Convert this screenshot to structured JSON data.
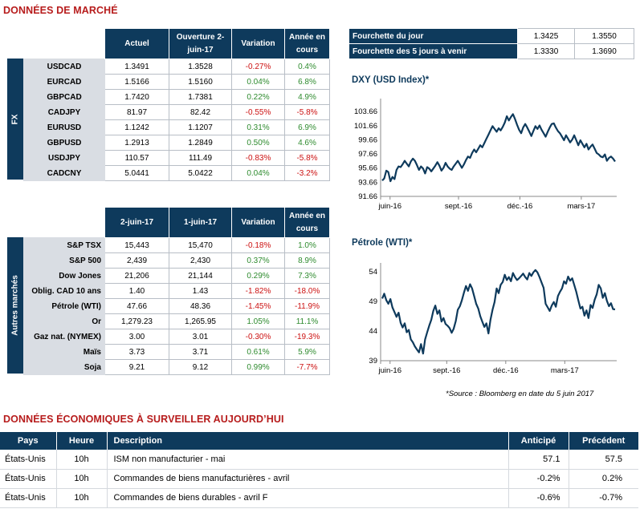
{
  "market": {
    "title": "DONNÉES DE MARCHÉ",
    "fx": {
      "side_label": "FX",
      "headers": [
        "Actuel",
        "Ouverture 2-juin-17",
        "Variation",
        "Année en cours"
      ],
      "rows": [
        {
          "name": "USDCAD",
          "actuel": "1.3491",
          "ouverture": "1.3528",
          "variation": "-0.27%",
          "annee": "0.4%"
        },
        {
          "name": "EURCAD",
          "actuel": "1.5166",
          "ouverture": "1.5160",
          "variation": "0.04%",
          "annee": "6.8%"
        },
        {
          "name": "GBPCAD",
          "actuel": "1.7420",
          "ouverture": "1.7381",
          "variation": "0.22%",
          "annee": "4.9%"
        },
        {
          "name": "CADJPY",
          "actuel": "81.97",
          "ouverture": "82.42",
          "variation": "-0.55%",
          "annee": "-5.8%"
        },
        {
          "name": "EURUSD",
          "actuel": "1.1242",
          "ouverture": "1.1207",
          "variation": "0.31%",
          "annee": "6.9%"
        },
        {
          "name": "GBPUSD",
          "actuel": "1.2913",
          "ouverture": "1.2849",
          "variation": "0.50%",
          "annee": "4.6%"
        },
        {
          "name": "USDJPY",
          "actuel": "110.57",
          "ouverture": "111.49",
          "variation": "-0.83%",
          "annee": "-5.8%"
        },
        {
          "name": "CADCNY",
          "actuel": "5.0441",
          "ouverture": "5.0422",
          "variation": "0.04%",
          "annee": "-3.2%"
        }
      ]
    },
    "other": {
      "side_label": "Autres marchés",
      "headers": [
        "2-juin-17",
        "1-juin-17",
        "Variation",
        "Année en cours"
      ],
      "rows": [
        {
          "name": "S&P TSX",
          "c1": "15,443",
          "c2": "15,470",
          "variation": "-0.18%",
          "annee": "1.0%"
        },
        {
          "name": "S&P 500",
          "c1": "2,439",
          "c2": "2,430",
          "variation": "0.37%",
          "annee": "8.9%"
        },
        {
          "name": "Dow Jones",
          "c1": "21,206",
          "c2": "21,144",
          "variation": "0.29%",
          "annee": "7.3%"
        },
        {
          "name": "Oblig. CAD 10 ans",
          "c1": "1.40",
          "c2": "1.43",
          "variation": "-1.82%",
          "annee": "-18.0%"
        },
        {
          "name": "Pétrole (WTI)",
          "c1": "47.66",
          "c2": "48.36",
          "variation": "-1.45%",
          "annee": "-11.9%"
        },
        {
          "name": "Or",
          "c1": "1,279.23",
          "c2": "1,265.95",
          "variation": "1.05%",
          "annee": "11.1%"
        },
        {
          "name": "Gaz nat. (NYMEX)",
          "c1": "3.00",
          "c2": "3.01",
          "variation": "-0.30%",
          "annee": "-19.3%"
        },
        {
          "name": "Maïs",
          "c1": "3.73",
          "c2": "3.71",
          "variation": "0.61%",
          "annee": "5.9%"
        },
        {
          "name": "Soja",
          "c1": "9.21",
          "c2": "9.12",
          "variation": "0.99%",
          "annee": "-7.7%"
        }
      ]
    },
    "ranges": [
      {
        "label": "Fourchette du jour",
        "low": "1.3425",
        "high": "1.3550"
      },
      {
        "label": "Fourchette des 5 jours à venir",
        "low": "1.3330",
        "high": "1.3690"
      }
    ],
    "source_note": "*Source : Bloomberg en date du  5 juin 2017"
  },
  "chart_data": [
    {
      "type": "line",
      "title": "DXY (USD Index)*",
      "ylim": [
        91.66,
        105.5
      ],
      "yticks": [
        "103.66",
        "101.66",
        "99.66",
        "97.66",
        "95.66",
        "93.66",
        "91.66"
      ],
      "ytick_values": [
        103.66,
        101.66,
        99.66,
        97.66,
        95.66,
        93.66,
        91.66
      ],
      "xticks": [
        "juin-16",
        "sept.-16",
        "déc.-16",
        "mars-17"
      ],
      "xtick_pos": [
        0.04,
        0.33,
        0.59,
        0.85
      ],
      "values": [
        93.9,
        94.2,
        95.3,
        95.1,
        93.8,
        94.4,
        94.1,
        95.4,
        95.9,
        95.8,
        96.2,
        96.7,
        96.3,
        95.9,
        96.6,
        97.0,
        96.7,
        96.1,
        95.4,
        95.9,
        95.6,
        94.9,
        95.8,
        95.6,
        95.2,
        95.6,
        96.0,
        96.5,
        96.0,
        95.3,
        95.7,
        96.4,
        95.9,
        95.6,
        95.4,
        95.9,
        96.3,
        96.7,
        96.2,
        95.7,
        96.2,
        96.8,
        97.3,
        97.1,
        97.8,
        98.3,
        97.9,
        98.4,
        98.9,
        98.6,
        99.2,
        99.8,
        100.4,
        101.0,
        101.6,
        101.2,
        100.8,
        101.3,
        101.0,
        101.5,
        102.1,
        103.0,
        102.4,
        102.9,
        103.3,
        102.6,
        101.8,
        101.1,
        100.6,
        101.4,
        101.9,
        101.4,
        100.8,
        100.2,
        100.9,
        101.6,
        101.2,
        101.7,
        101.1,
        100.6,
        100.1,
        100.8,
        101.4,
        101.9,
        102.0,
        101.4,
        100.9,
        100.6,
        100.1,
        99.6,
        100.3,
        99.8,
        99.3,
        99.7,
        100.3,
        99.6,
        98.9,
        99.6,
        99.1,
        98.6,
        99.1,
        98.3,
        98.7,
        99.0,
        98.4,
        97.8,
        97.6,
        97.3,
        97.2,
        97.6,
        96.7,
        97.1,
        97.3,
        97.0,
        96.6
      ]
    },
    {
      "type": "line",
      "title": "Pétrole (WTI)*",
      "ylim": [
        39,
        55.5
      ],
      "yticks": [
        "54",
        "49",
        "44",
        "39"
      ],
      "ytick_values": [
        54,
        49,
        44,
        39
      ],
      "xticks": [
        "juin-16",
        "sept.-16",
        "déc.-16",
        "mars-17"
      ],
      "xtick_pos": [
        0.04,
        0.28,
        0.53,
        0.78
      ],
      "values": [
        49.5,
        50.3,
        49.2,
        48.6,
        49.4,
        48.0,
        47.2,
        46.4,
        47.1,
        45.4,
        44.6,
        45.3,
        43.8,
        44.2,
        42.6,
        42.1,
        41.4,
        40.9,
        40.4,
        41.8,
        40.2,
        42.6,
        43.8,
        44.9,
        45.9,
        47.4,
        48.3,
        46.9,
        47.5,
        45.6,
        46.2,
        45.2,
        44.9,
        44.5,
        43.7,
        44.4,
        45.7,
        47.6,
        48.2,
        49.2,
        50.5,
        51.6,
        50.8,
        51.9,
        51.2,
        49.9,
        48.6,
        47.8,
        46.5,
        45.6,
        44.7,
        45.3,
        43.6,
        45.9,
        47.6,
        48.9,
        51.2,
        50.4,
        51.8,
        52.3,
        53.5,
        52.6,
        53.1,
        52.4,
        53.8,
        53.1,
        52.6,
        52.9,
        53.3,
        53.7,
        53.1,
        52.7,
        53.8,
        53.3,
        53.9,
        54.3,
        53.9,
        53.1,
        52.2,
        51.3,
        48.6,
        48.0,
        47.4,
        48.3,
        48.9,
        48.1,
        49.9,
        50.6,
        51.2,
        52.4,
        52.0,
        53.2,
        52.5,
        52.9,
        51.8,
        50.6,
        49.2,
        47.8,
        48.1,
        46.6,
        47.5,
        46.2,
        48.4,
        47.9,
        49.3,
        50.2,
        51.8,
        51.2,
        49.6,
        50.4,
        49.1,
        48.2,
        48.7,
        47.7,
        47.66
      ]
    }
  ],
  "economic": {
    "title": "DONNÉES ÉCONOMIQUES À SURVEILLER AUJOURD’HUI",
    "headers": [
      "Pays",
      "Heure",
      "Description",
      "Anticipé",
      "Précédent"
    ],
    "rows": [
      {
        "pays": "États-Unis",
        "heure": "10h",
        "description": "ISM non manufacturier - mai",
        "anticipe": "57.1",
        "precedent": "57.5"
      },
      {
        "pays": "États-Unis",
        "heure": "10h",
        "description": "Commandes de biens manufacturières - avril",
        "anticipe": "-0.2%",
        "precedent": "0.2%"
      },
      {
        "pays": "États-Unis",
        "heure": "10h",
        "description": "Commandes de biens durables - avril F",
        "anticipe": "-0.6%",
        "precedent": "-0.7%"
      }
    ]
  },
  "colors": {
    "header_bg": "#0e3a5c",
    "label_bg": "#d9dde3",
    "title_red": "#b71c1c",
    "positive": "#2e8b2e",
    "negative": "#cc1111",
    "line": "#0e3a5c"
  }
}
